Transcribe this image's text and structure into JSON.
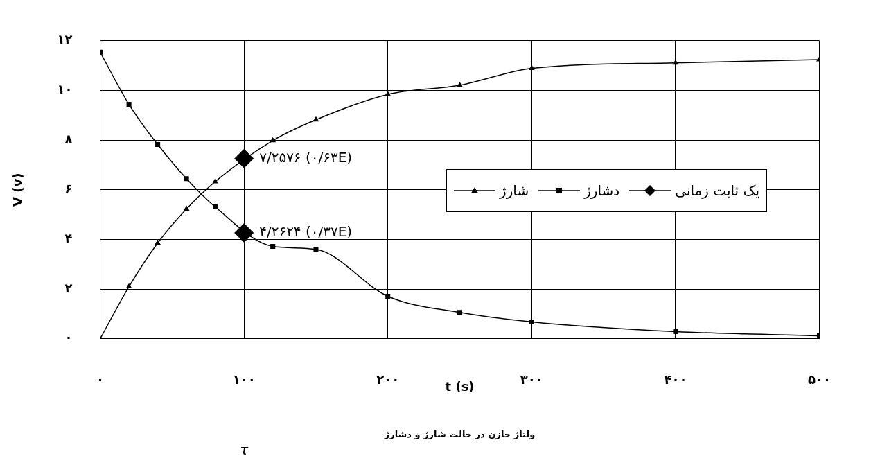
{
  "chart_data": {
    "type": "line",
    "xlabel": "t (s)",
    "ylabel": "V (v)",
    "annotations": [
      "ولتاژ خازن در حالت شارژ و دشارژ",
      "τ"
    ],
    "xlim": [
      0,
      500
    ],
    "xticks": [
      {
        "value": 0,
        "label": "۰"
      },
      {
        "value": 100,
        "label": "۱۰۰"
      },
      {
        "value": 200,
        "label": "۲۰۰"
      },
      {
        "value": 300,
        "label": "۳۰۰"
      },
      {
        "value": 400,
        "label": "۴۰۰"
      },
      {
        "value": 500,
        "label": "۵۰۰"
      }
    ],
    "ylim": [
      0,
      12
    ],
    "yticks": [
      {
        "value": 0,
        "label": "۰"
      },
      {
        "value": 2,
        "label": "۲"
      },
      {
        "value": 4,
        "label": "۴"
      },
      {
        "value": 6,
        "label": "۶"
      },
      {
        "value": 8,
        "label": "۸"
      },
      {
        "value": 10,
        "label": "۱۰"
      },
      {
        "value": 12,
        "label": "۱۲"
      }
    ],
    "grid": true,
    "legend": "right",
    "line_style": "solid",
    "series": [
      {
        "name": "شارژ",
        "color": "#000000",
        "marker": "triangle",
        "x": [
          0,
          20,
          40,
          60,
          80,
          120,
          150,
          200,
          250,
          300,
          400,
          500
        ],
        "values": [
          0,
          2.1,
          3.86,
          5.23,
          6.33,
          7.98,
          8.82,
          9.84,
          10.21,
          10.89,
          11.11,
          11.24
        ]
      },
      {
        "name": "دشارژ",
        "color": "#000000",
        "marker": "square",
        "x": [
          0,
          20,
          40,
          60,
          80,
          120,
          150,
          200,
          250,
          300,
          400,
          500
        ],
        "values": [
          11.54,
          9.44,
          7.82,
          6.45,
          5.31,
          3.72,
          3.6,
          1.71,
          1.06,
          0.68,
          0.29,
          0.12
        ]
      },
      {
        "name": "یک ثابت زمانی",
        "color": "#000000",
        "marker": "diamond",
        "type": "scatter",
        "x": [
          100,
          100
        ],
        "values": [
          7.2576,
          4.2624
        ],
        "value_labels": [
          "۷/۲۵۷۶ (۰/۶۳E)",
          "۴/۲۶۲۴ (۰/۳۷E)"
        ]
      }
    ]
  }
}
